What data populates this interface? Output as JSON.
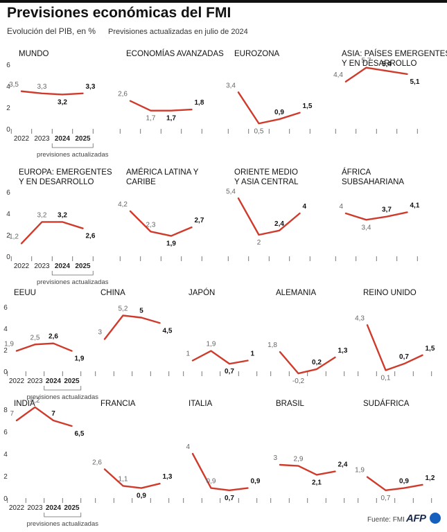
{
  "header": {
    "title": "Previsiones económicas del FMI",
    "subtitle": "Evolución del PIB, en %",
    "note": "Previsiones actualizadas en julio de 2024"
  },
  "footer": {
    "source": "Fuente: FMI",
    "logo_text": "AFP"
  },
  "colors": {
    "series": "#cf3a2b"
  },
  "chart_data": [
    {
      "type": "line",
      "title": [
        "MUNDO"
      ],
      "x": [
        "2022",
        "2023",
        "2024",
        "2025"
      ],
      "values": [
        3.5,
        3.3,
        3.2,
        3.3
      ],
      "labels": [
        "3,5",
        "3,3",
        "3,2",
        "3,3"
      ],
      "bold": [
        false,
        false,
        true,
        true
      ],
      "yticks": [
        "0",
        "2",
        "4",
        "6"
      ],
      "updated_note": "previsiones actualizadas",
      "ylim": [
        0,
        6
      ]
    },
    {
      "type": "line",
      "title": [
        "ECONOMÍAS AVANZADAS"
      ],
      "values": [
        2.6,
        1.7,
        1.7,
        1.8
      ],
      "labels": [
        "2,6",
        "1,7",
        "1,7",
        "1,8"
      ],
      "bold": [
        false,
        false,
        true,
        true
      ],
      "ylim": [
        0,
        6
      ]
    },
    {
      "type": "line",
      "title": [
        "EUROZONA"
      ],
      "values": [
        3.4,
        0.5,
        0.9,
        1.5
      ],
      "labels": [
        "3,4",
        "0,5",
        "0,9",
        "1,5"
      ],
      "bold": [
        false,
        false,
        true,
        true
      ],
      "ylim": [
        0,
        6
      ]
    },
    {
      "type": "line",
      "title": [
        "ASIA: PAÍSES EMERGENTES",
        "Y EN DESARROLLO"
      ],
      "values": [
        4.4,
        5.7,
        5.4,
        5.1
      ],
      "labels": [
        "4,4",
        "5,7",
        "5,4",
        "5,1"
      ],
      "bold": [
        false,
        false,
        true,
        true
      ],
      "ylim": [
        0,
        6
      ]
    },
    {
      "type": "line",
      "title": [
        "EUROPA: EMERGENTES",
        "Y EN DESARROLLO"
      ],
      "x": [
        "2022",
        "2023",
        "2024",
        "2025"
      ],
      "values": [
        1.2,
        3.2,
        3.2,
        2.6
      ],
      "labels": [
        "1,2",
        "3,2",
        "3,2",
        "2,6"
      ],
      "bold": [
        false,
        false,
        true,
        true
      ],
      "yticks": [
        "0",
        "2",
        "4",
        "6"
      ],
      "updated_note": "previsiones actualizadas",
      "ylim": [
        0,
        6
      ]
    },
    {
      "type": "line",
      "title": [
        "AMÉRICA LATINA Y",
        "CARIBE"
      ],
      "values": [
        4.2,
        2.3,
        1.9,
        2.7
      ],
      "labels": [
        "4,2",
        "2,3",
        "1,9",
        "2,7"
      ],
      "bold": [
        false,
        false,
        true,
        true
      ],
      "ylim": [
        0,
        6
      ]
    },
    {
      "type": "line",
      "title": [
        "ORIENTE MEDIO",
        "Y ASIA CENTRAL"
      ],
      "values": [
        5.4,
        2,
        2.4,
        4
      ],
      "labels": [
        "5,4",
        "2",
        "2,4",
        "4"
      ],
      "bold": [
        false,
        false,
        true,
        true
      ],
      "ylim": [
        0,
        6
      ]
    },
    {
      "type": "line",
      "title": [
        "ÁFRICA",
        "SUBSAHARIANA"
      ],
      "values": [
        4,
        3.4,
        3.7,
        4.1
      ],
      "labels": [
        "4",
        "3,4",
        "3,7",
        "4,1"
      ],
      "bold": [
        false,
        false,
        true,
        true
      ],
      "ylim": [
        0,
        6
      ]
    },
    {
      "type": "line",
      "title": [
        "EEUU"
      ],
      "x": [
        "2022",
        "2023",
        "2024",
        "2025"
      ],
      "values": [
        1.9,
        2.5,
        2.6,
        1.9
      ],
      "labels": [
        "1,9",
        "2,5",
        "2,6",
        "1,9"
      ],
      "bold": [
        false,
        false,
        true,
        true
      ],
      "yticks": [
        "0",
        "2",
        "4",
        "6"
      ],
      "updated_note": "previsiones actualizadas",
      "ylim": [
        0,
        6
      ]
    },
    {
      "type": "line",
      "title": [
        "CHINA"
      ],
      "values": [
        3,
        5.2,
        5,
        4.5
      ],
      "labels": [
        "3",
        "5,2",
        "5",
        "4,5"
      ],
      "bold": [
        false,
        false,
        true,
        true
      ],
      "ylim": [
        0,
        6
      ]
    },
    {
      "type": "line",
      "title": [
        "JAPÓN"
      ],
      "values": [
        1,
        1.9,
        0.7,
        1
      ],
      "labels": [
        "1",
        "1,9",
        "0,7",
        "1"
      ],
      "bold": [
        false,
        false,
        true,
        true
      ],
      "ylim": [
        0,
        6
      ]
    },
    {
      "type": "line",
      "title": [
        "ALEMANIA"
      ],
      "values": [
        1.8,
        -0.2,
        0.2,
        1.3
      ],
      "labels": [
        "1,8",
        "-0,2",
        "0,2",
        "1,3"
      ],
      "bold": [
        false,
        false,
        true,
        true
      ],
      "ylim": [
        0,
        6
      ]
    },
    {
      "type": "line",
      "title": [
        "REINO UNIDO"
      ],
      "values": [
        4.3,
        0.1,
        0.7,
        1.5
      ],
      "labels": [
        "4,3",
        "0,1",
        "0,7",
        "1,5"
      ],
      "bold": [
        false,
        false,
        true,
        true
      ],
      "ylim": [
        0,
        6
      ]
    },
    {
      "type": "line",
      "title": [
        "INDIA"
      ],
      "x": [
        "2022",
        "2023",
        "2024",
        "2025"
      ],
      "values": [
        7,
        8.2,
        7,
        6.5
      ],
      "labels": [
        "7",
        "8,2",
        "7",
        "6,5"
      ],
      "bold": [
        false,
        false,
        true,
        true
      ],
      "yticks": [
        "0",
        "2",
        "4",
        "6",
        "8"
      ],
      "updated_note": "previsiones actualizadas",
      "ylim": [
        0,
        8
      ]
    },
    {
      "type": "line",
      "title": [
        "FRANCIA"
      ],
      "values": [
        2.6,
        1.1,
        0.9,
        1.3
      ],
      "labels": [
        "2,6",
        "1,1",
        "0,9",
        "1,3"
      ],
      "bold": [
        false,
        false,
        true,
        true
      ],
      "ylim": [
        0,
        8
      ]
    },
    {
      "type": "line",
      "title": [
        "ITALIA"
      ],
      "values": [
        4,
        0.9,
        0.7,
        0.9
      ],
      "labels": [
        "4",
        "0,9",
        "0,7",
        "0,9"
      ],
      "bold": [
        false,
        false,
        true,
        true
      ],
      "ylim": [
        0,
        8
      ]
    },
    {
      "type": "line",
      "title": [
        "BRASIL"
      ],
      "values": [
        3,
        2.9,
        2.1,
        2.4
      ],
      "labels": [
        "3",
        "2,9",
        "2,1",
        "2,4"
      ],
      "bold": [
        false,
        false,
        true,
        true
      ],
      "ylim": [
        0,
        8
      ]
    },
    {
      "type": "line",
      "title": [
        "SUDÁFRICA"
      ],
      "values": [
        1.9,
        0.7,
        0.9,
        1.2
      ],
      "labels": [
        "1,9",
        "0,7",
        "0,9",
        "1,2"
      ],
      "bold": [
        false,
        false,
        true,
        true
      ],
      "ylim": [
        0,
        8
      ]
    }
  ]
}
